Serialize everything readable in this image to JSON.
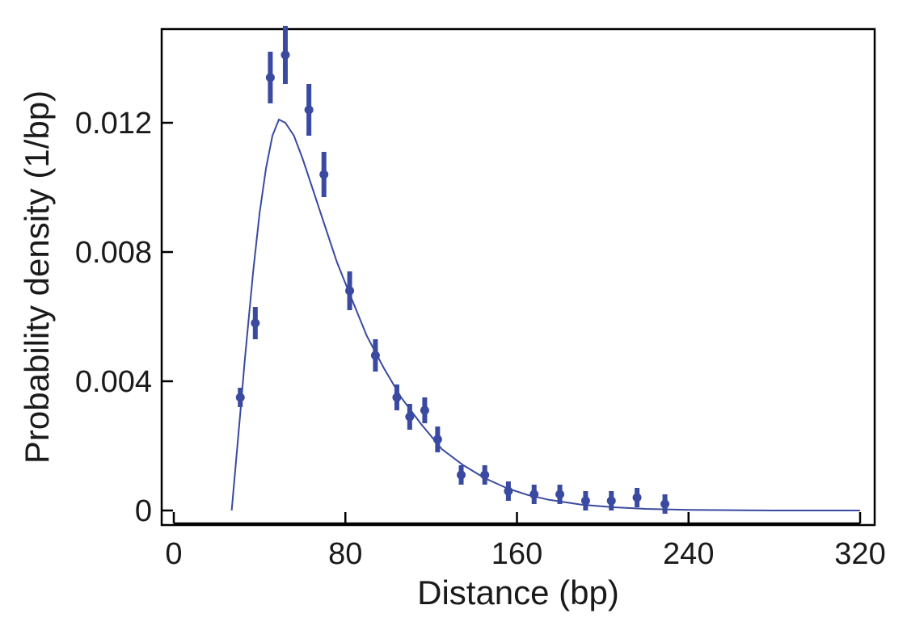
{
  "chart_data": {
    "type": "scatter",
    "title": "",
    "xlabel": "Distance (bp)",
    "ylabel": "Probability density (1/bp)",
    "xlim": [
      -4,
      320
    ],
    "ylim": [
      -0.0005,
      0.0149
    ],
    "xticks": [
      0,
      80,
      160,
      240,
      320
    ],
    "xtick_labels": [
      "0",
      "80",
      "160",
      "240",
      "320"
    ],
    "yticks": [
      0,
      0.004,
      0.008,
      0.012
    ],
    "ytick_labels": [
      "0",
      "0.004",
      "0.008",
      "0.012"
    ],
    "grid": false,
    "legend": "none",
    "colors": {
      "series": "#3a4aa0",
      "axes": "#000000"
    },
    "series": [
      {
        "kind": "points-with-error-bars",
        "x": [
          31,
          38,
          45,
          52,
          63,
          70,
          82,
          94,
          104,
          110,
          117,
          123,
          134,
          145,
          156,
          168,
          180,
          192,
          204,
          216,
          229
        ],
        "y": [
          0.0035,
          0.0058,
          0.0134,
          0.0141,
          0.0124,
          0.0104,
          0.0068,
          0.0048,
          0.0035,
          0.0029,
          0.0031,
          0.0022,
          0.0011,
          0.0011,
          0.0006,
          0.0005,
          0.0005,
          0.0003,
          0.0003,
          0.0004,
          0.0002
        ],
        "err": [
          0.0003,
          0.0005,
          0.0008,
          0.0009,
          0.0008,
          0.0007,
          0.0006,
          0.0005,
          0.0004,
          0.0004,
          0.0004,
          0.0004,
          0.0003,
          0.0003,
          0.0003,
          0.0003,
          0.0003,
          0.0003,
          0.0003,
          0.0003,
          0.0003
        ]
      },
      {
        "kind": "fit-curve",
        "x": [
          27,
          29,
          31,
          33,
          35,
          37,
          40,
          43,
          46,
          49,
          52,
          56,
          60,
          65,
          70,
          76,
          82,
          90,
          98,
          106,
          115,
          125,
          135,
          145,
          155,
          165,
          175,
          190,
          205,
          220,
          240,
          260,
          280,
          300,
          320
        ],
        "y": [
          0.0,
          0.0015,
          0.003,
          0.0046,
          0.006,
          0.0074,
          0.0092,
          0.0106,
          0.0116,
          0.0121,
          0.012,
          0.0116,
          0.0109,
          0.0099,
          0.0089,
          0.0077,
          0.0067,
          0.0054,
          0.0044,
          0.0035,
          0.0027,
          0.0019,
          0.0014,
          0.001,
          0.0007,
          0.00048,
          0.00033,
          0.00018,
          0.0001,
          5e-05,
          2e-05,
          1e-05,
          0.0,
          0.0,
          0.0
        ]
      }
    ]
  }
}
